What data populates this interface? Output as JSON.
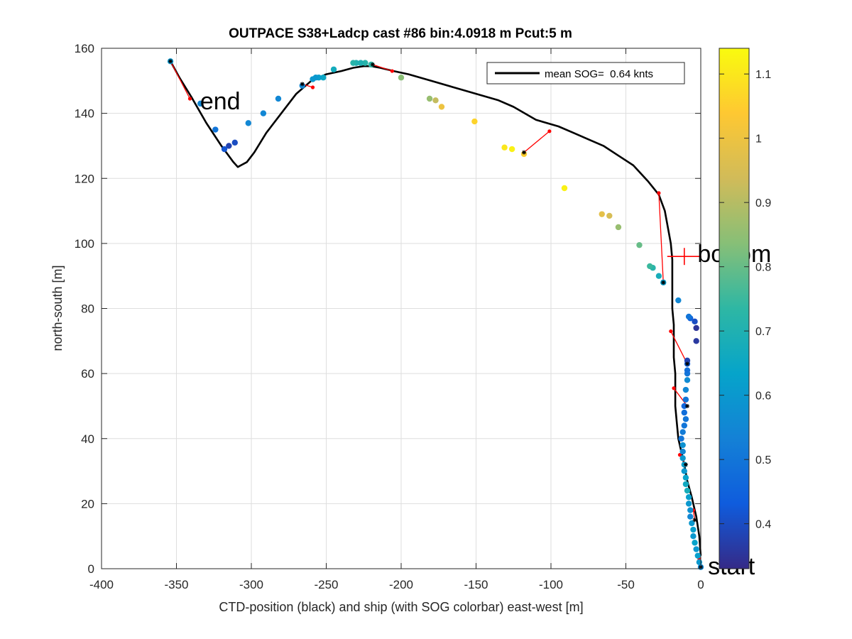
{
  "chart_data": {
    "type": "scatter",
    "title": "OUTPACE S38+Ladcp cast #86 bin:4.0918 m  Pcut:5 m",
    "xlabel": "CTD-position (black) and ship (with SOG colorbar) east-west [m]",
    "ylabel": "north-south [m]",
    "xlim": [
      -400,
      0
    ],
    "ylim": [
      0,
      160
    ],
    "xticks": [
      -400,
      -350,
      -300,
      -250,
      -200,
      -150,
      -100,
      -50,
      0
    ],
    "yticks": [
      0,
      20,
      40,
      60,
      80,
      100,
      120,
      140,
      160
    ],
    "grid": true,
    "legend": {
      "location": "top-right",
      "entry": "mean SOG=  0.64 knts"
    },
    "colorbar": {
      "range": [
        0.33,
        1.14
      ],
      "ticks": [
        0.4,
        0.5,
        0.6,
        0.7,
        0.8,
        0.9,
        1,
        1.1
      ],
      "tick_labels": [
        "0.4",
        "0.5",
        "0.6",
        "0.7",
        "0.8",
        "0.9",
        "1",
        "1.1"
      ],
      "colormap": [
        "#352a87",
        "#0f5cdd",
        "#1481d6",
        "#06a4ca",
        "#2eb7a4",
        "#87bf77",
        "#d1bb59",
        "#fec832",
        "#f9fb0e"
      ]
    },
    "annotations": [
      {
        "text": "start",
        "x": 1,
        "y": 0
      },
      {
        "text": "bottom",
        "x": -6,
        "y": 96
      },
      {
        "text": "end",
        "x": -338,
        "y": 143
      }
    ],
    "bottom_marker": {
      "x": -11,
      "y": 96
    },
    "ctd_track": {
      "x": [
        0,
        -1,
        -3,
        -6,
        -9,
        -11,
        -13,
        -15,
        -16,
        -17,
        -17,
        -17,
        -18,
        -18,
        -18,
        -19,
        -19,
        -19,
        -19,
        -20,
        -22,
        -24,
        -28,
        -35,
        -45,
        -55,
        -65,
        -75,
        -85,
        -95,
        -110,
        -125,
        -135,
        -150,
        -165,
        -180,
        -195,
        -205,
        -214,
        -220,
        -225,
        -232,
        -240,
        -250,
        -260,
        -270,
        -280,
        -290,
        -298,
        -303,
        -307,
        -309,
        -312,
        -320,
        -330,
        -340,
        -348,
        -354
      ],
      "y": [
        4,
        10,
        16,
        22,
        27,
        32,
        36,
        40,
        45,
        50,
        55,
        60,
        65,
        70,
        75,
        80,
        85,
        90,
        95,
        100,
        105,
        110,
        115,
        119,
        124,
        127,
        130,
        132,
        134,
        136,
        138,
        142,
        144,
        146,
        148,
        150,
        152,
        153,
        154,
        154.5,
        154.5,
        154,
        153,
        152,
        150,
        146,
        140,
        134,
        128,
        125,
        124,
        123.5,
        125,
        130,
        137,
        145,
        151,
        156
      ]
    },
    "ship_points": [
      {
        "x": 0,
        "y": 0.5,
        "sog": 0.55
      },
      {
        "x": -1,
        "y": 2,
        "sog": 0.6
      },
      {
        "x": -2,
        "y": 4,
        "sog": 0.62
      },
      {
        "x": -3,
        "y": 6,
        "sog": 0.6
      },
      {
        "x": -4,
        "y": 8,
        "sog": 0.63
      },
      {
        "x": -5,
        "y": 10,
        "sog": 0.6
      },
      {
        "x": -5,
        "y": 12,
        "sog": 0.62
      },
      {
        "x": -6,
        "y": 14,
        "sog": 0.6
      },
      {
        "x": -7,
        "y": 16,
        "sog": 0.55
      },
      {
        "x": -7,
        "y": 18,
        "sog": 0.58
      },
      {
        "x": -8,
        "y": 20,
        "sog": 0.6
      },
      {
        "x": -8,
        "y": 22,
        "sog": 0.62
      },
      {
        "x": -9,
        "y": 24,
        "sog": 0.68
      },
      {
        "x": -10,
        "y": 26,
        "sog": 0.66
      },
      {
        "x": -10,
        "y": 28,
        "sog": 0.63
      },
      {
        "x": -11,
        "y": 30,
        "sog": 0.6
      },
      {
        "x": -11,
        "y": 32,
        "sog": 0.62
      },
      {
        "x": -12,
        "y": 34,
        "sog": 0.6
      },
      {
        "x": -12,
        "y": 36,
        "sog": 0.55
      },
      {
        "x": -12,
        "y": 38,
        "sog": 0.58
      },
      {
        "x": -13,
        "y": 40,
        "sog": 0.5
      },
      {
        "x": -12,
        "y": 42,
        "sog": 0.52
      },
      {
        "x": -11,
        "y": 44,
        "sog": 0.5
      },
      {
        "x": -10,
        "y": 46,
        "sog": 0.5
      },
      {
        "x": -11,
        "y": 48,
        "sog": 0.48
      },
      {
        "x": -11,
        "y": 50,
        "sog": 0.46
      },
      {
        "x": -10,
        "y": 52,
        "sog": 0.5
      },
      {
        "x": -10,
        "y": 55,
        "sog": 0.55
      },
      {
        "x": -9,
        "y": 58,
        "sog": 0.56
      },
      {
        "x": -9,
        "y": 60,
        "sog": 0.5
      },
      {
        "x": -9,
        "y": 61,
        "sog": 0.48
      },
      {
        "x": -9,
        "y": 63,
        "sog": 0.45
      },
      {
        "x": -9,
        "y": 64,
        "sog": 0.38
      },
      {
        "x": -3,
        "y": 70,
        "sog": 0.36
      },
      {
        "x": -3,
        "y": 74,
        "sog": 0.35
      },
      {
        "x": -4,
        "y": 76,
        "sog": 0.4
      },
      {
        "x": -7,
        "y": 77,
        "sog": 0.45
      },
      {
        "x": -8,
        "y": 77.5,
        "sog": 0.5
      },
      {
        "x": -15,
        "y": 82.5,
        "sog": 0.55
      },
      {
        "x": -25,
        "y": 88,
        "sog": 0.62
      },
      {
        "x": -28,
        "y": 90,
        "sog": 0.68
      },
      {
        "x": -32,
        "y": 92.5,
        "sog": 0.72
      },
      {
        "x": -34,
        "y": 93,
        "sog": 0.75
      },
      {
        "x": -41,
        "y": 99.5,
        "sog": 0.8
      },
      {
        "x": -55,
        "y": 105,
        "sog": 0.86
      },
      {
        "x": -61,
        "y": 108.5,
        "sog": 0.95
      },
      {
        "x": -66,
        "y": 109,
        "sog": 0.98
      },
      {
        "x": -91,
        "y": 117,
        "sog": 1.12
      },
      {
        "x": -118,
        "y": 127.5,
        "sog": 1.05
      },
      {
        "x": -126,
        "y": 129,
        "sog": 1.12
      },
      {
        "x": -131,
        "y": 129.5,
        "sog": 1.1
      },
      {
        "x": -151,
        "y": 137.5,
        "sog": 1.06
      },
      {
        "x": -173,
        "y": 142,
        "sog": 1.0
      },
      {
        "x": -177,
        "y": 144,
        "sog": 0.92
      },
      {
        "x": -181,
        "y": 144.5,
        "sog": 0.86
      },
      {
        "x": -200,
        "y": 151,
        "sog": 0.84
      },
      {
        "x": -220,
        "y": 155,
        "sog": 0.73
      },
      {
        "x": -224,
        "y": 155.5,
        "sog": 0.72
      },
      {
        "x": -227,
        "y": 155.5,
        "sog": 0.7
      },
      {
        "x": -230,
        "y": 155.5,
        "sog": 0.7
      },
      {
        "x": -232,
        "y": 155.5,
        "sog": 0.72
      },
      {
        "x": -245,
        "y": 153.5,
        "sog": 0.67
      },
      {
        "x": -252,
        "y": 151,
        "sog": 0.65
      },
      {
        "x": -255,
        "y": 151,
        "sog": 0.62
      },
      {
        "x": -257,
        "y": 151,
        "sog": 0.6
      },
      {
        "x": -259,
        "y": 150.5,
        "sog": 0.6
      },
      {
        "x": -266,
        "y": 148.5,
        "sog": 0.55
      },
      {
        "x": -282,
        "y": 144.5,
        "sog": 0.55
      },
      {
        "x": -292,
        "y": 140,
        "sog": 0.55
      },
      {
        "x": -302,
        "y": 137,
        "sog": 0.55
      },
      {
        "x": -311,
        "y": 131,
        "sog": 0.4
      },
      {
        "x": -315,
        "y": 130,
        "sog": 0.38
      },
      {
        "x": -318,
        "y": 129,
        "sog": 0.42
      },
      {
        "x": -324,
        "y": 135,
        "sog": 0.5
      },
      {
        "x": -334,
        "y": 143,
        "sog": 0.55
      },
      {
        "x": -354,
        "y": 156,
        "sog": 0.6
      }
    ],
    "black_stars": [
      {
        "x": 0,
        "y": 0.5
      },
      {
        "x": -4,
        "y": 15
      },
      {
        "x": -10,
        "y": 32
      },
      {
        "x": -9,
        "y": 50
      },
      {
        "x": -9,
        "y": 63
      },
      {
        "x": -25,
        "y": 88
      },
      {
        "x": -118,
        "y": 128
      },
      {
        "x": -219,
        "y": 155
      },
      {
        "x": -266,
        "y": 149
      },
      {
        "x": -354,
        "y": 156
      }
    ],
    "vectors": [
      [
        {
          "x": 0,
          "y": 0.5
        },
        {
          "x": -1,
          "y": 3
        }
      ],
      [
        {
          "x": -4,
          "y": 15
        },
        {
          "x": -5,
          "y": 18
        }
      ],
      [
        {
          "x": -10,
          "y": 32
        },
        {
          "x": -14,
          "y": 35
        }
      ],
      [
        {
          "x": -9,
          "y": 50
        },
        {
          "x": -18,
          "y": 55.5
        }
      ],
      [
        {
          "x": -9,
          "y": 63
        },
        {
          "x": -20,
          "y": 73
        }
      ],
      [
        {
          "x": -25,
          "y": 88
        },
        {
          "x": -28,
          "y": 115.5
        }
      ],
      [
        {
          "x": -118,
          "y": 128
        },
        {
          "x": -101,
          "y": 134.5
        }
      ],
      [
        {
          "x": -219,
          "y": 155
        },
        {
          "x": -206,
          "y": 153
        }
      ],
      [
        {
          "x": -266,
          "y": 149
        },
        {
          "x": -259,
          "y": 148
        }
      ],
      [
        {
          "x": -354,
          "y": 156
        },
        {
          "x": -341,
          "y": 144.5
        }
      ]
    ]
  }
}
